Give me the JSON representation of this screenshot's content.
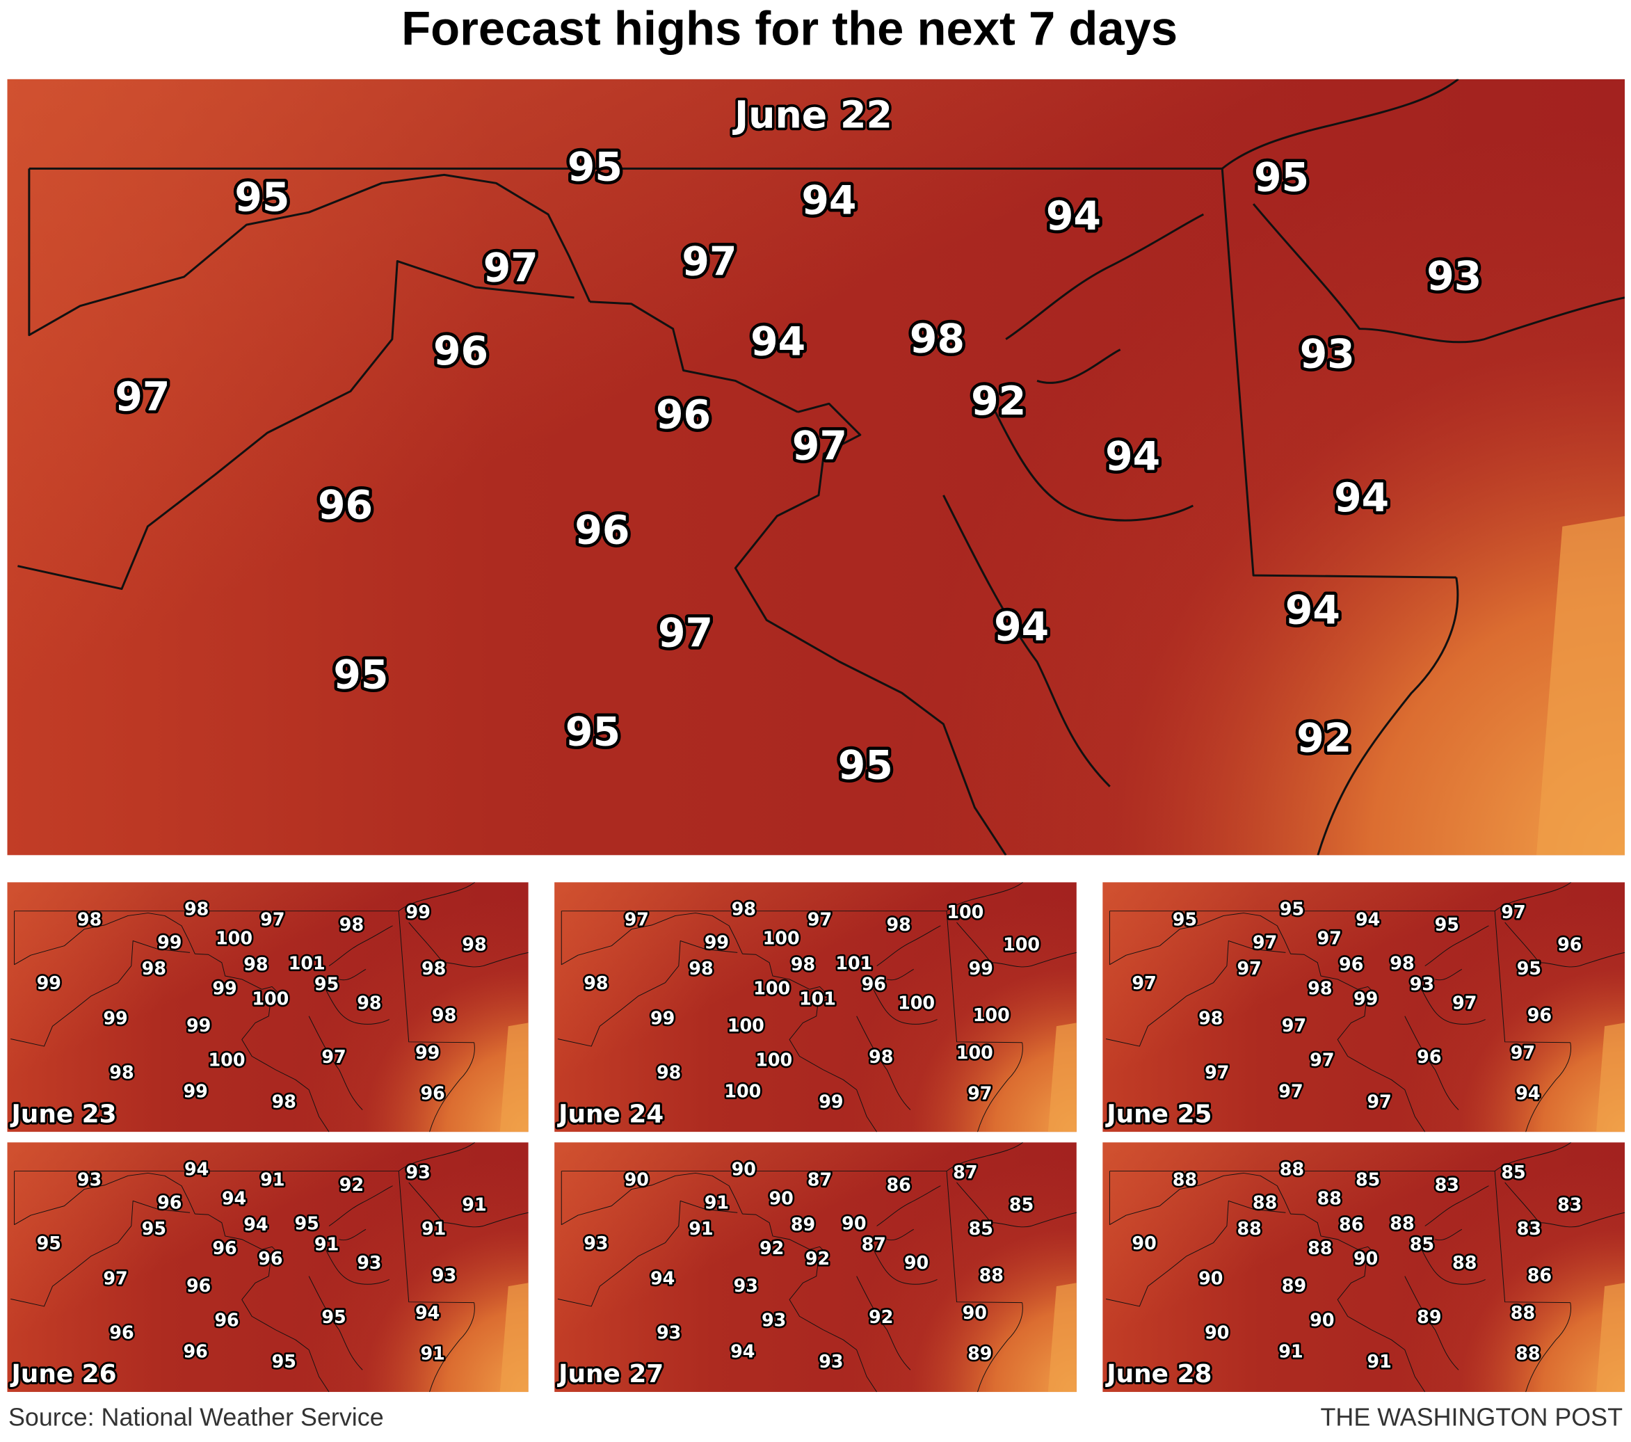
{
  "title": "Forecast highs for the next 7 days",
  "main_map": {
    "date": "June 22",
    "labels": [
      95,
      95,
      94,
      94,
      95,
      93,
      97,
      97,
      96,
      94,
      {
        "value": 98,
        "color": "#ffd400"
      },
      93,
      97,
      96,
      {
        "value": 92,
        "color": "#00ffff"
      },
      97,
      94,
      94,
      96,
      96,
      94,
      97,
      94,
      95,
      95,
      92,
      95
    ]
  },
  "small_maps": [
    {
      "date": "June 23",
      "labels": [
        98,
        98,
        97,
        98,
        99,
        99,
        100,
        98,
        {
          "value": 101,
          "color": "#ffd400"
        },
        98,
        98,
        {
          "value": 95,
          "color": "#00ffff"
        },
        99,
        99,
        100,
        98,
        98,
        98,
        99,
        99,
        100,
        97,
        99,
        98,
        99,
        98,
        96
      ]
    },
    {
      "date": "June 24",
      "labels": [
        97,
        98,
        97,
        98,
        100,
        99,
        100,
        98,
        101,
        98,
        100,
        {
          "value": 96,
          "color": "#00ffff"
        },
        98,
        100,
        {
          "value": 101,
          "color": "#ffd400"
        },
        99,
        100,
        100,
        99,
        100,
        100,
        98,
        100,
        98,
        100,
        99,
        97
      ]
    },
    {
      "date": "June 25",
      "labels": [
        95,
        95,
        94,
        95,
        97,
        97,
        97,
        97,
        98,
        96,
        96,
        {
          "value": 93,
          "color": "#00ffff"
        },
        97,
        98,
        {
          "value": 99,
          "color": "#ffd400"
        },
        95,
        97,
        96,
        98,
        97,
        97,
        96,
        97,
        97,
        97,
        97,
        94
      ]
    },
    {
      "date": "June 26",
      "labels": [
        93,
        94,
        91,
        92,
        93,
        96,
        94,
        95,
        95,
        94,
        91,
        {
          "value": 91,
          "color": "#00ffff"
        },
        95,
        96,
        96,
        91,
        93,
        93,
        {
          "value": 97,
          "color": "#ffd400"
        },
        96,
        96,
        95,
        94,
        96,
        96,
        95,
        91
      ]
    },
    {
      "date": "June 27",
      "labels": [
        90,
        90,
        87,
        86,
        87,
        91,
        90,
        91,
        90,
        89,
        85,
        87,
        93,
        92,
        92,
        {
          "value": 85,
          "color": "#00ffff"
        },
        90,
        88,
        {
          "value": 94,
          "color": "#ffd400"
        },
        93,
        93,
        92,
        90,
        93,
        94,
        93,
        89
      ]
    },
    {
      "date": "June 28",
      "labels": [
        88,
        88,
        85,
        {
          "value": 83,
          "color": "#00ffff"
        },
        85,
        88,
        88,
        88,
        88,
        86,
        83,
        85,
        90,
        88,
        90,
        83,
        88,
        86,
        90,
        89,
        90,
        89,
        88,
        90,
        91,
        {
          "value": 91,
          "color": "#ffd400"
        },
        88
      ]
    }
  ],
  "source": "Source: National Weather Service",
  "credit": "THE WASHINGTON POST"
}
